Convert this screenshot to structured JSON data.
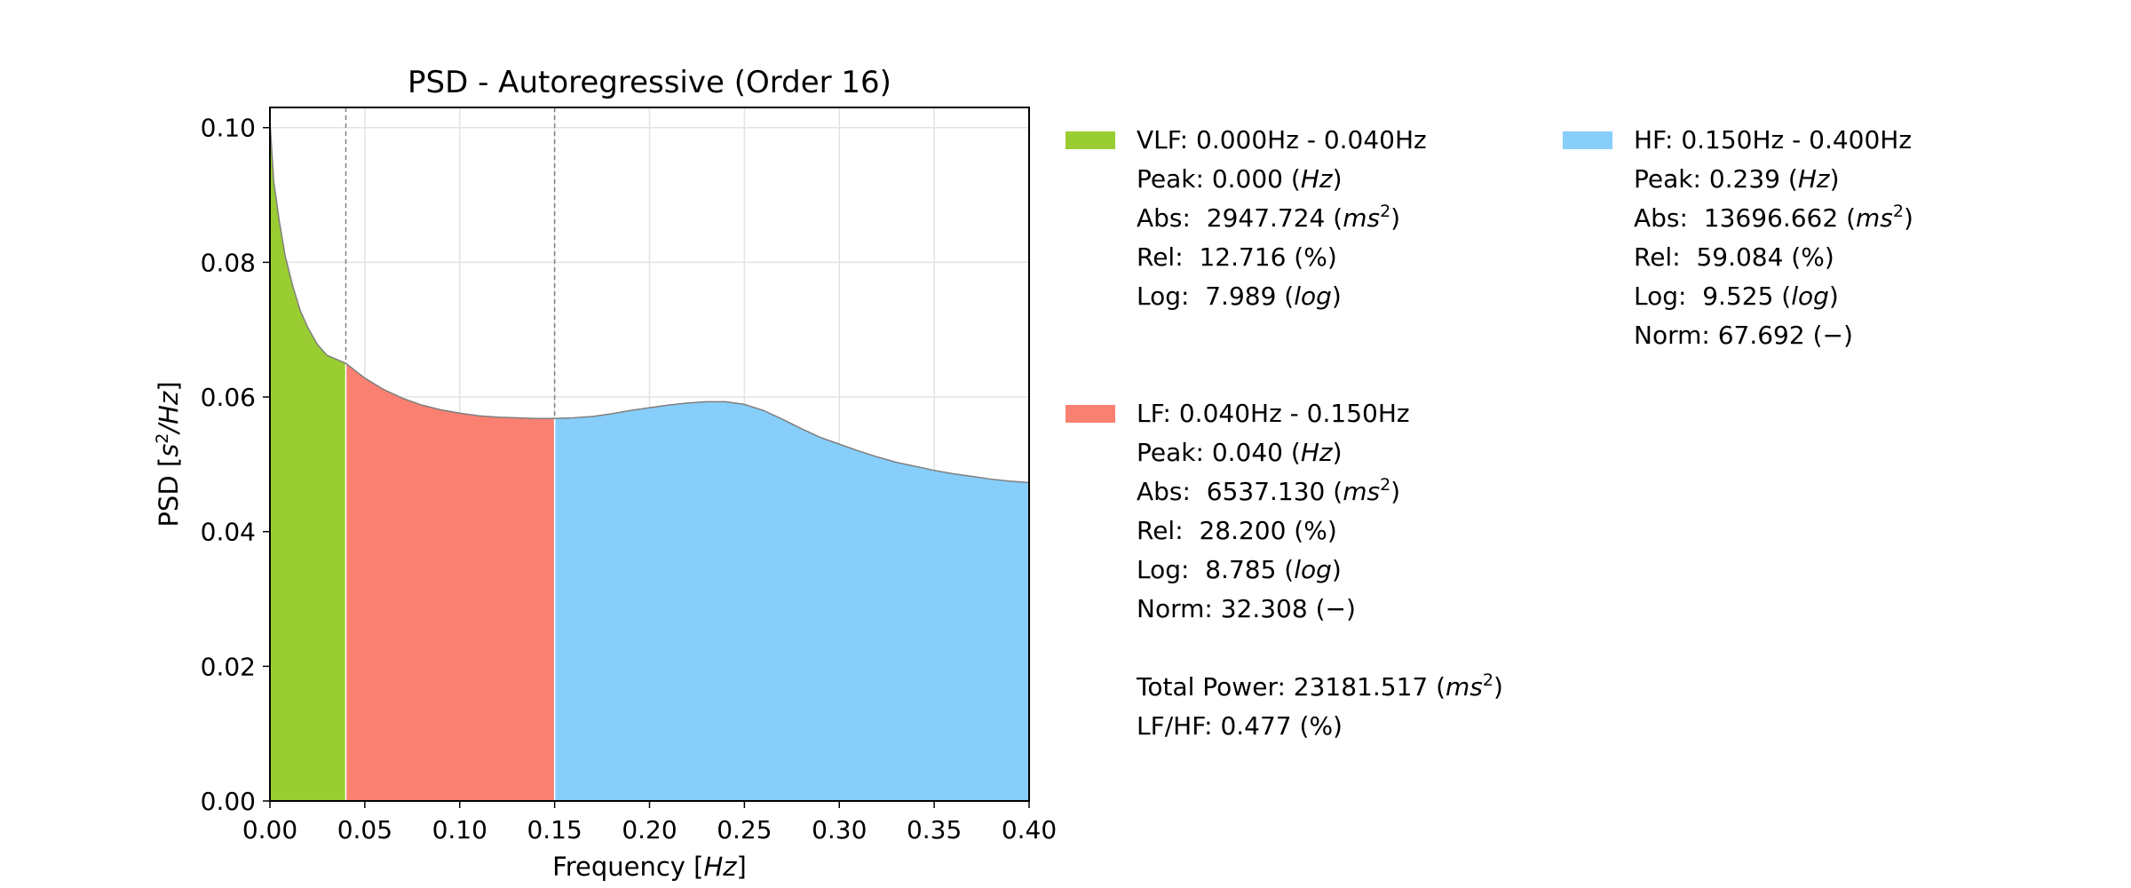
{
  "chart_data": {
    "type": "area",
    "title": "PSD - Autoregressive (Order 16)",
    "xlabel": "Frequency [Hz]",
    "ylabel": "PSD [s²/Hz]",
    "xlim": [
      0.0,
      0.4
    ],
    "ylim": [
      0.0,
      0.103
    ],
    "x_ticks": [
      "0.00",
      "0.05",
      "0.10",
      "0.15",
      "0.20",
      "0.25",
      "0.30",
      "0.35",
      "0.40"
    ],
    "y_ticks": [
      "0.00",
      "0.02",
      "0.04",
      "0.06",
      "0.08",
      "0.10"
    ],
    "grid": true,
    "band_boundaries": [
      0.04,
      0.15
    ],
    "curve": {
      "x": [
        0.0,
        0.002,
        0.005,
        0.008,
        0.012,
        0.016,
        0.02,
        0.025,
        0.03,
        0.035,
        0.04,
        0.05,
        0.06,
        0.07,
        0.08,
        0.09,
        0.1,
        0.11,
        0.12,
        0.13,
        0.14,
        0.15,
        0.16,
        0.17,
        0.18,
        0.19,
        0.2,
        0.21,
        0.22,
        0.23,
        0.24,
        0.25,
        0.26,
        0.27,
        0.28,
        0.29,
        0.3,
        0.31,
        0.32,
        0.33,
        0.34,
        0.35,
        0.36,
        0.37,
        0.38,
        0.39,
        0.4
      ],
      "y": [
        0.101,
        0.092,
        0.086,
        0.081,
        0.0765,
        0.0728,
        0.0703,
        0.0678,
        0.0662,
        0.0656,
        0.065,
        0.0628,
        0.0611,
        0.0598,
        0.0588,
        0.0581,
        0.0576,
        0.0572,
        0.057,
        0.0569,
        0.0568,
        0.0568,
        0.0569,
        0.0571,
        0.0575,
        0.058,
        0.0584,
        0.0588,
        0.0591,
        0.0593,
        0.0593,
        0.0589,
        0.058,
        0.0567,
        0.0553,
        0.054,
        0.053,
        0.052,
        0.0511,
        0.0503,
        0.0497,
        0.0491,
        0.0486,
        0.0482,
        0.0478,
        0.0475,
        0.0473
      ]
    },
    "bands": [
      {
        "key": "vlf",
        "name": "VLF: 0.000Hz - 0.040Hz",
        "range": [
          0.0,
          0.04
        ],
        "color": "#9acd32",
        "lines": [
          "Peak: 0.000 (Hz)",
          "Abs:  2947.724 (ms2)",
          "Rel:  12.716 (%)",
          "Log:  7.989 (log)"
        ]
      },
      {
        "key": "lf",
        "name": "LF: 0.040Hz - 0.150Hz",
        "range": [
          0.04,
          0.15
        ],
        "color": "#fa8072",
        "lines": [
          "Peak: 0.040 (Hz)",
          "Abs:  6537.130 (ms2)",
          "Rel:  28.200 (%)",
          "Log:  8.785 (log)",
          "Norm: 32.308 (−)"
        ]
      },
      {
        "key": "hf",
        "name": "HF: 0.150Hz - 0.400Hz",
        "range": [
          0.15,
          0.4
        ],
        "color": "#87cefa",
        "lines": [
          "Peak: 0.239 (Hz)",
          "Abs:  13696.662 (ms2)",
          "Rel:  59.084 (%)",
          "Log:  9.525 (log)",
          "Norm: 67.692 (−)"
        ]
      }
    ],
    "totals": [
      "Total Power: 23181.517 (ms2)",
      "LF/HF: 0.477 (%)"
    ]
  }
}
